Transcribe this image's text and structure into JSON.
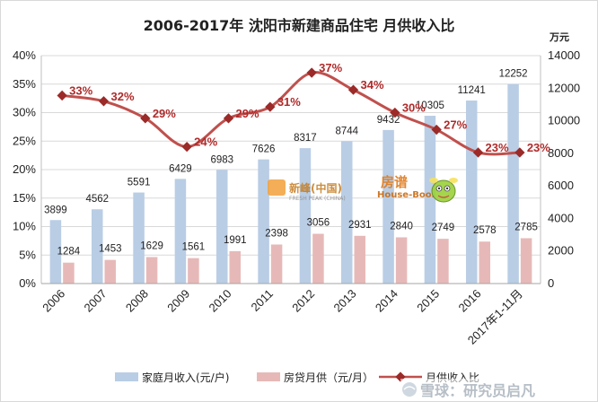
{
  "chart_data": {
    "type": "bar",
    "title": "2006-2017年 沈阳市新建商品住宅 月供收入比",
    "categories": [
      "2006",
      "2007",
      "2008",
      "2009",
      "2010",
      "2011",
      "2012",
      "2013",
      "2014",
      "2015",
      "2016",
      "2017年1-11月"
    ],
    "right_axis_unit": "万元",
    "left_ylim": [
      0,
      0.4
    ],
    "left_ticks": [
      "0%",
      "5%",
      "10%",
      "15%",
      "20%",
      "25%",
      "30%",
      "35%",
      "40%"
    ],
    "right_ylim": [
      0,
      14000
    ],
    "right_ticks": [
      "0",
      "2000",
      "4000",
      "6000",
      "8000",
      "10000",
      "12000",
      "14000"
    ],
    "gridlines": true,
    "legend_position": "bottom",
    "series": [
      {
        "name": "家庭月收入(元/户)",
        "kind": "bar",
        "axis": "right",
        "color": "#b9cde5",
        "values": [
          3899,
          4562,
          5591,
          6429,
          6983,
          7626,
          8317,
          8744,
          9432,
          10305,
          11241,
          12252
        ]
      },
      {
        "name": "房贷月供（元/月）",
        "kind": "bar",
        "axis": "right",
        "color": "#e6b9b8",
        "values": [
          1284,
          1453,
          1629,
          1561,
          1991,
          2398,
          3056,
          2931,
          2840,
          2749,
          2578,
          2785
        ]
      },
      {
        "name": "月供收入比",
        "kind": "line",
        "axis": "left",
        "color": "#c0504d",
        "values": [
          0.33,
          0.32,
          0.29,
          0.24,
          0.29,
          0.31,
          0.37,
          0.34,
          0.3,
          0.27,
          0.23,
          0.23
        ],
        "labels": [
          "33%",
          "32%",
          "29%",
          "24%",
          "29%",
          "31%",
          "37%",
          "34%",
          "30%",
          "27%",
          "23%",
          "23%"
        ]
      }
    ]
  },
  "watermarks": {
    "logo1_name": "新峰(中国)",
    "logo1_sub": "FRESH PEAK (CHINA)",
    "logo2_name": "房谱",
    "logo2_sub": "House-Book",
    "source_mark": "雪球：研究员启凡"
  }
}
